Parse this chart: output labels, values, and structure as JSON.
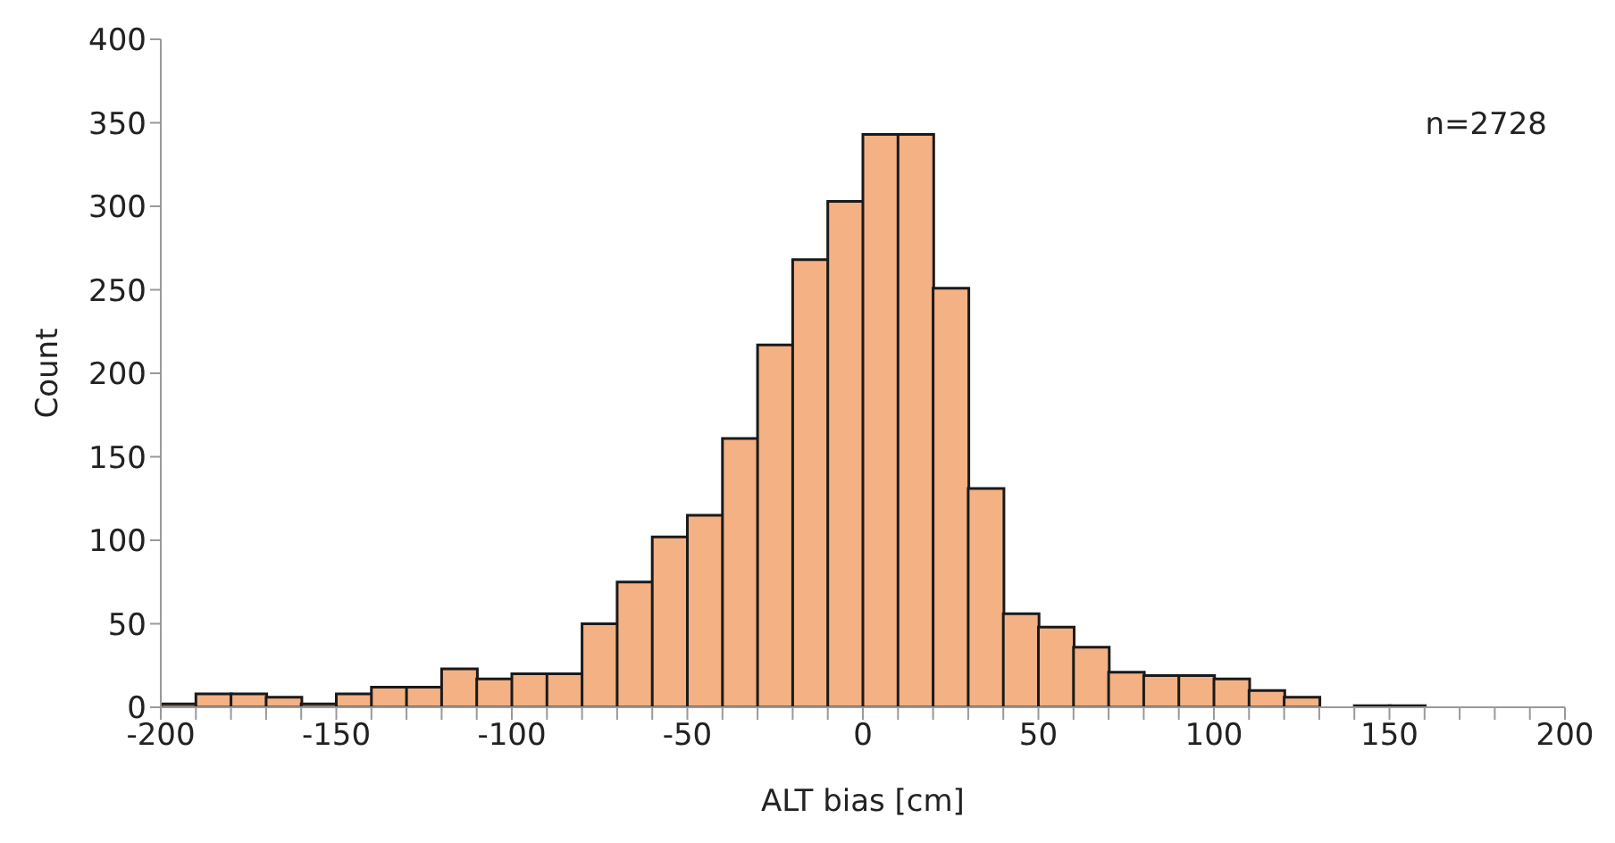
{
  "chart_data": {
    "type": "histogram",
    "xlabel": "ALT bias [cm]",
    "ylabel": "Count",
    "annotations": [
      "n=2728"
    ],
    "bins": [
      -200,
      -190,
      -180,
      -170,
      -160,
      -150,
      -140,
      -130,
      -120,
      -110,
      -100,
      -90,
      -80,
      -70,
      -60,
      -50,
      -40,
      -30,
      -20,
      -10,
      0,
      10,
      20,
      30,
      40,
      50,
      60,
      70,
      80,
      90,
      100,
      110,
      120,
      130,
      140,
      150,
      160,
      170,
      180,
      190,
      200
    ],
    "values": [
      2,
      8,
      8,
      6,
      2,
      8,
      12,
      12,
      23,
      17,
      20,
      20,
      50,
      75,
      102,
      115,
      161,
      217,
      268,
      303,
      343,
      343,
      251,
      131,
      56,
      48,
      36,
      21,
      19,
      19,
      17,
      10,
      6,
      0,
      1,
      1,
      0,
      0,
      0,
      0
    ],
    "color": "#f4b183",
    "xlim": [
      -200,
      200
    ],
    "xticks": [
      -200,
      {
        "value": -190,
        "label": null
      },
      {
        "value": -180,
        "label": null
      },
      {
        "value": -170,
        "label": null
      },
      {
        "value": -160,
        "label": null
      },
      -150,
      {
        "value": -140,
        "label": null
      },
      {
        "value": -130,
        "label": null
      },
      {
        "value": -120,
        "label": null
      },
      {
        "value": -110,
        "label": null
      },
      -100,
      {
        "value": -90,
        "label": null
      },
      {
        "value": -80,
        "label": null
      },
      {
        "value": -70,
        "label": null
      },
      {
        "value": -60,
        "label": null
      },
      -50,
      {
        "value": -40,
        "label": null
      },
      {
        "value": -30,
        "label": null
      },
      {
        "value": -20,
        "label": null
      },
      {
        "value": -10,
        "label": null
      },
      0,
      {
        "value": 10,
        "label": null
      },
      {
        "value": 20,
        "label": null
      },
      {
        "value": 30,
        "label": null
      },
      {
        "value": 40,
        "label": null
      },
      50,
      {
        "value": 60,
        "label": null
      },
      {
        "value": 70,
        "label": null
      },
      {
        "value": 80,
        "label": null
      },
      {
        "value": 90,
        "label": null
      },
      100,
      {
        "value": 110,
        "label": null
      },
      {
        "value": 120,
        "label": null
      },
      {
        "value": 130,
        "label": null
      },
      {
        "value": 140,
        "label": null
      },
      150,
      {
        "value": 160,
        "label": null
      },
      {
        "value": 170,
        "label": null
      },
      {
        "value": 180,
        "label": null
      },
      {
        "value": 190,
        "label": null
      },
      200
    ],
    "ylim": [
      0,
      400
    ],
    "yticks": [
      0,
      50,
      100,
      150,
      200,
      250,
      300,
      350,
      400
    ],
    "grid": false,
    "legend": false
  }
}
